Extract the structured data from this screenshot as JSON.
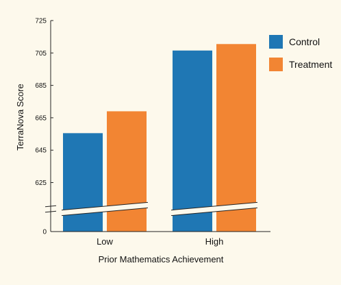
{
  "chart_data": {
    "type": "bar",
    "categories": [
      "Low",
      "High"
    ],
    "series": [
      {
        "name": "Control",
        "color": "#1f77b4",
        "values": [
          655.5,
          706.5
        ]
      },
      {
        "name": "Treatment",
        "color": "#f28533",
        "values": [
          669,
          710.5
        ]
      }
    ],
    "xlabel": "Prior Mathematics Achievement",
    "ylabel": "TerraNova Score",
    "y_ticks": [
      725,
      705,
      685,
      665,
      645,
      625,
      0
    ],
    "ylim": [
      0,
      725
    ],
    "axis_break": true,
    "legend": "top-right",
    "grid": false
  },
  "colors": {
    "background": "#fdf9ec"
  }
}
